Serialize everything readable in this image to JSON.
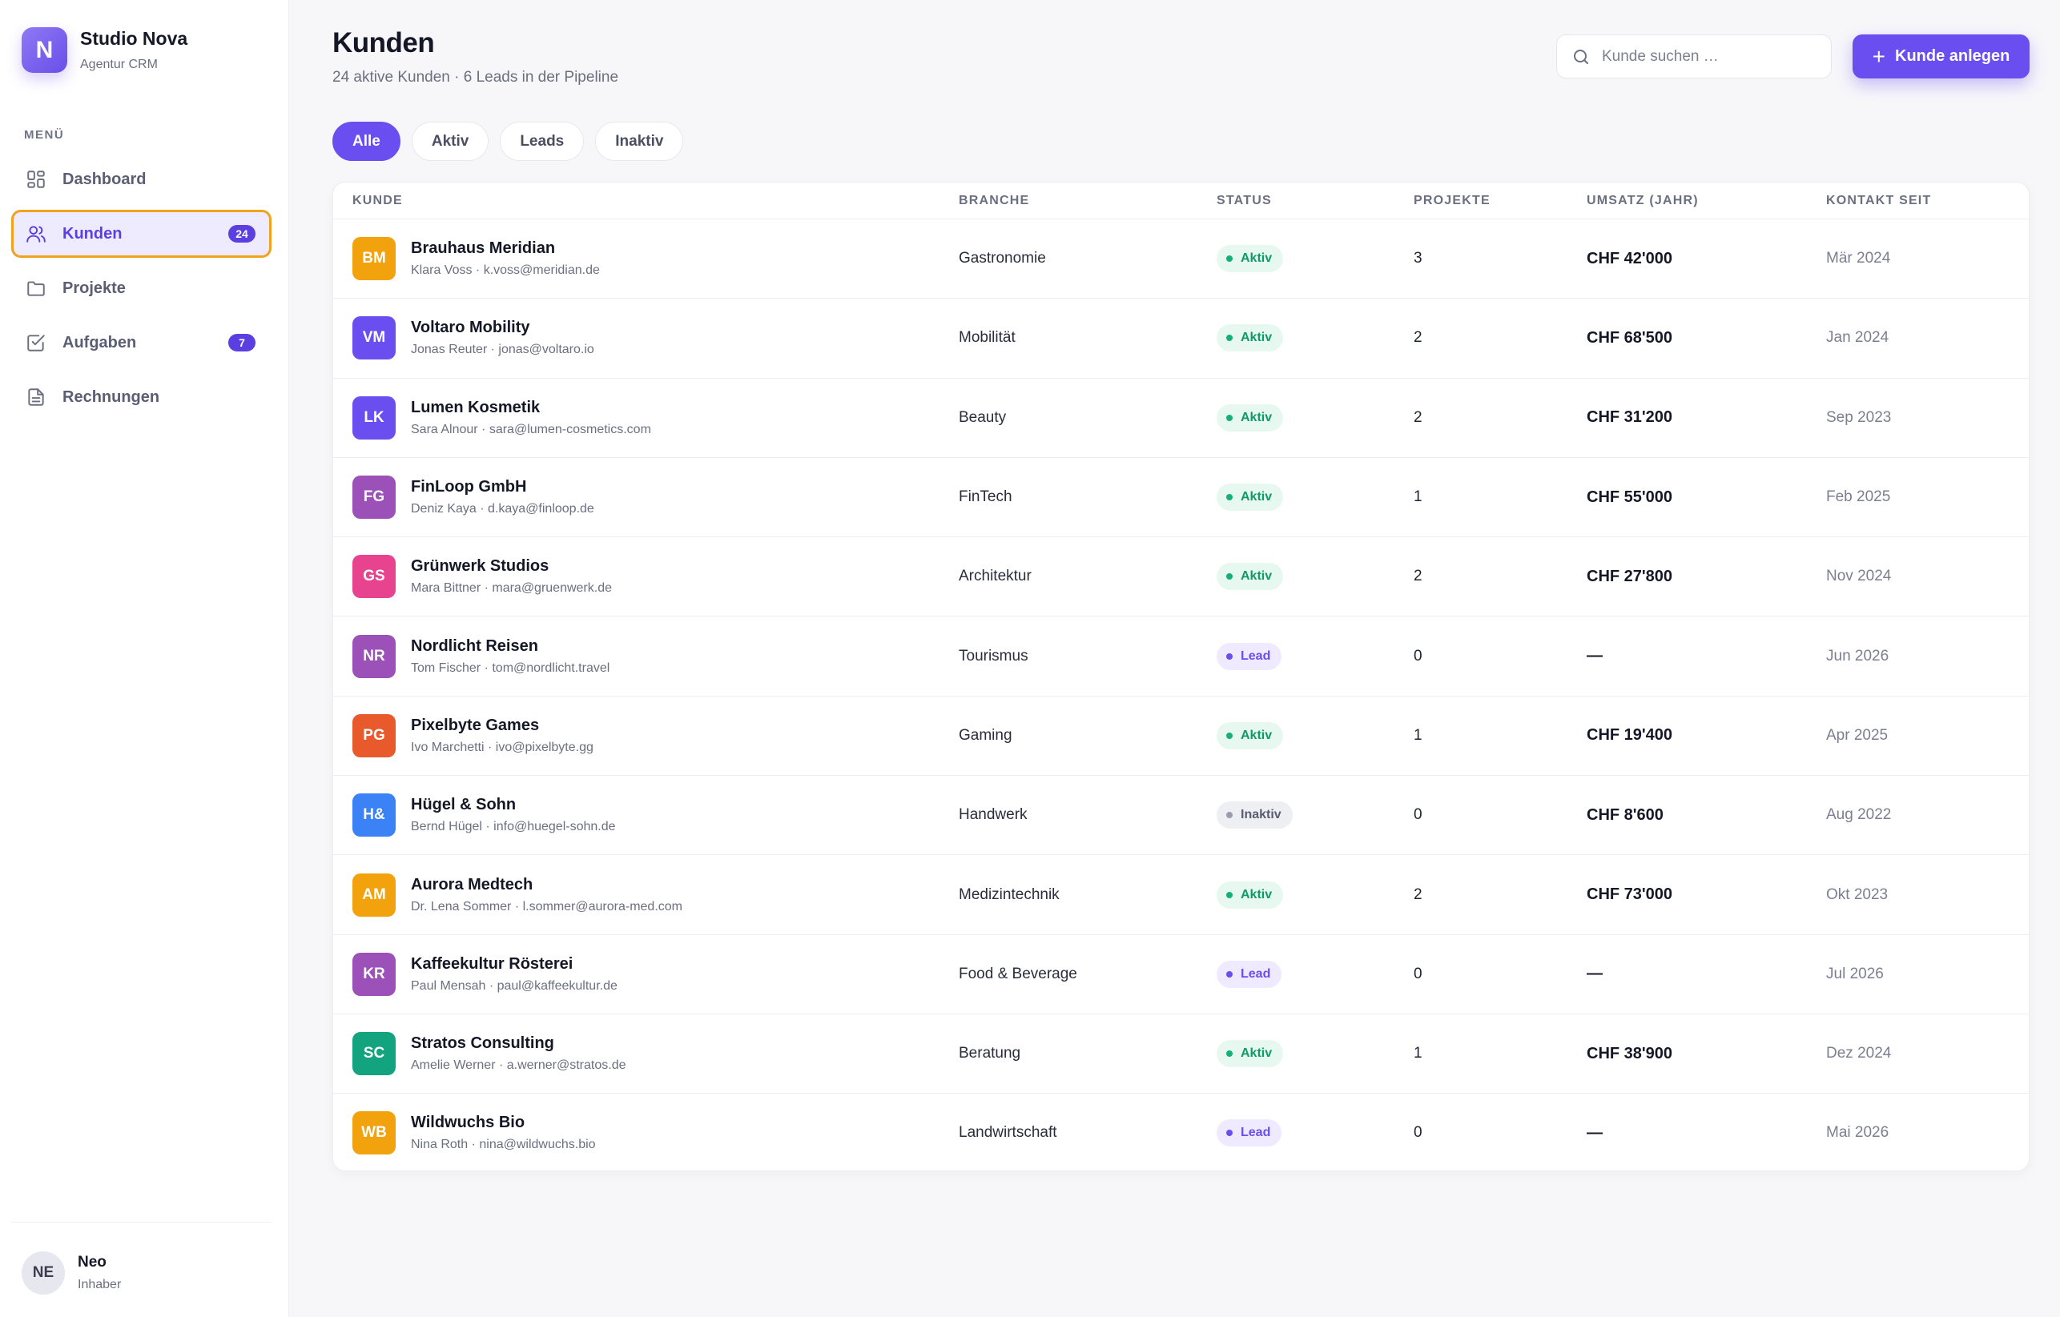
{
  "brand": {
    "logo_letter": "N",
    "name": "Studio Nova",
    "subtitle": "Agentur CRM"
  },
  "sidebar": {
    "menu_label": "MENÜ",
    "items": [
      {
        "label": "Dashboard",
        "icon": "grid-icon",
        "badge": ""
      },
      {
        "label": "Kunden",
        "icon": "users-icon",
        "badge": "24",
        "active": true
      },
      {
        "label": "Projekte",
        "icon": "folder-icon",
        "badge": ""
      },
      {
        "label": "Aufgaben",
        "icon": "checkbox-icon",
        "badge": "7"
      },
      {
        "label": "Rechnungen",
        "icon": "document-icon",
        "badge": ""
      }
    ],
    "user": {
      "initials": "NE",
      "name": "Neo",
      "role": "Inhaber"
    }
  },
  "header": {
    "title": "Kunden",
    "subtitle": "24 aktive Kunden · 6 Leads in der Pipeline",
    "search_placeholder": "Kunde suchen …",
    "add_button": "Kunde anlegen"
  },
  "filters": [
    "Alle",
    "Aktiv",
    "Leads",
    "Inaktiv"
  ],
  "table": {
    "columns": [
      "KUNDE",
      "BRANCHE",
      "STATUS",
      "PROJEKTE",
      "UMSATZ (JAHR)",
      "KONTAKT SEIT"
    ],
    "rows": [
      {
        "initials": "BM",
        "color": "#f2a20c",
        "name": "Brauhaus Meridian",
        "contact": "Klara Voss · k.voss@meridian.de",
        "branche": "Gastronomie",
        "status": "Aktiv",
        "status_type": "aktiv",
        "projekte": "3",
        "umsatz": "CHF 42'000",
        "seit": "Mär 2024"
      },
      {
        "initials": "VM",
        "color": "#6b4ef0",
        "name": "Voltaro Mobility",
        "contact": "Jonas Reuter · jonas@voltaro.io",
        "branche": "Mobilität",
        "status": "Aktiv",
        "status_type": "aktiv",
        "projekte": "2",
        "umsatz": "CHF 68'500",
        "seit": "Jan 2024"
      },
      {
        "initials": "LK",
        "color": "#6b4ef0",
        "name": "Lumen Kosmetik",
        "contact": "Sara Alnour · sara@lumen-cosmetics.com",
        "branche": "Beauty",
        "status": "Aktiv",
        "status_type": "aktiv",
        "projekte": "2",
        "umsatz": "CHF 31'200",
        "seit": "Sep 2023"
      },
      {
        "initials": "FG",
        "color": "#9b51b8",
        "name": "FinLoop GmbH",
        "contact": "Deniz Kaya · d.kaya@finloop.de",
        "branche": "FinTech",
        "status": "Aktiv",
        "status_type": "aktiv",
        "projekte": "1",
        "umsatz": "CHF 55'000",
        "seit": "Feb 2025"
      },
      {
        "initials": "GS",
        "color": "#e8438f",
        "name": "Grünwerk Studios",
        "contact": "Mara Bittner · mara@gruenwerk.de",
        "branche": "Architektur",
        "status": "Aktiv",
        "status_type": "aktiv",
        "projekte": "2",
        "umsatz": "CHF 27'800",
        "seit": "Nov 2024"
      },
      {
        "initials": "NR",
        "color": "#9b51b8",
        "name": "Nordlicht Reisen",
        "contact": "Tom Fischer · tom@nordlicht.travel",
        "branche": "Tourismus",
        "status": "Lead",
        "status_type": "lead",
        "projekte": "0",
        "umsatz": "—",
        "seit": "Jun 2026"
      },
      {
        "initials": "PG",
        "color": "#e85a2c",
        "name": "Pixelbyte Games",
        "contact": "Ivo Marchetti · ivo@pixelbyte.gg",
        "branche": "Gaming",
        "status": "Aktiv",
        "status_type": "aktiv",
        "projekte": "1",
        "umsatz": "CHF 19'400",
        "seit": "Apr 2025"
      },
      {
        "initials": "H&",
        "color": "#3b82f6",
        "name": "Hügel & Sohn",
        "contact": "Bernd Hügel · info@huegel-sohn.de",
        "branche": "Handwerk",
        "status": "Inaktiv",
        "status_type": "inaktiv",
        "projekte": "0",
        "umsatz": "CHF 8'600",
        "seit": "Aug 2022"
      },
      {
        "initials": "AM",
        "color": "#f2a20c",
        "name": "Aurora Medtech",
        "contact": "Dr. Lena Sommer · l.sommer@aurora-med.com",
        "branche": "Medizintechnik",
        "status": "Aktiv",
        "status_type": "aktiv",
        "projekte": "2",
        "umsatz": "CHF 73'000",
        "seit": "Okt 2023"
      },
      {
        "initials": "KR",
        "color": "#9b51b8",
        "name": "Kaffeekultur Rösterei",
        "contact": "Paul Mensah · paul@kaffeekultur.de",
        "branche": "Food & Beverage",
        "status": "Lead",
        "status_type": "lead",
        "projekte": "0",
        "umsatz": "—",
        "seit": "Jul 2026"
      },
      {
        "initials": "SC",
        "color": "#14a37f",
        "name": "Stratos Consulting",
        "contact": "Amelie Werner · a.werner@stratos.de",
        "branche": "Beratung",
        "status": "Aktiv",
        "status_type": "aktiv",
        "projekte": "1",
        "umsatz": "CHF 38'900",
        "seit": "Dez 2024"
      },
      {
        "initials": "WB",
        "color": "#f2a20c",
        "name": "Wildwuchs Bio",
        "contact": "Nina Roth · nina@wildwuchs.bio",
        "branche": "Landwirtschaft",
        "status": "Lead",
        "status_type": "lead",
        "projekte": "0",
        "umsatz": "—",
        "seit": "Mai 2026"
      }
    ]
  }
}
